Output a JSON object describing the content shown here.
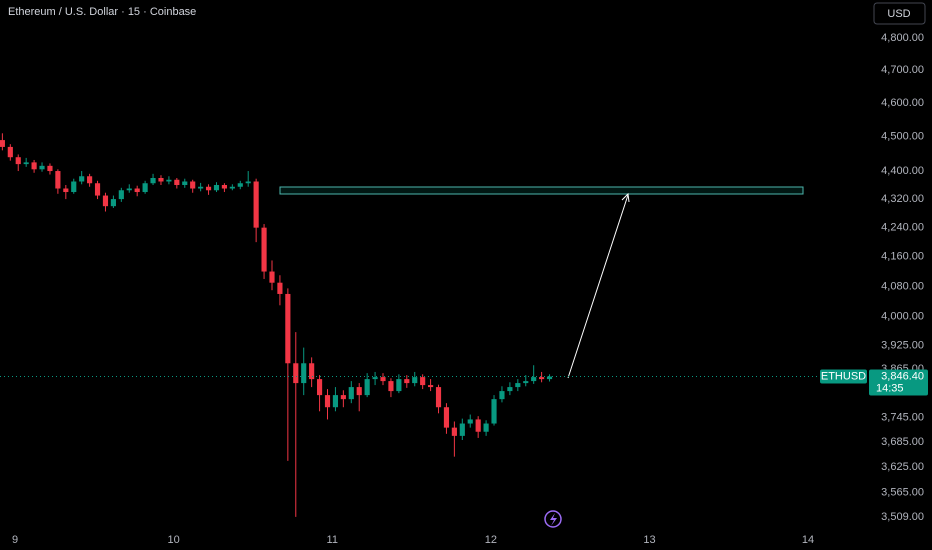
{
  "chart_data": {
    "type": "candlestick",
    "title": "Ethereum / U.S. Dollar · 15 · Coinbase",
    "currency": "USD",
    "symbol": "ETHUSD",
    "countdown": "14:35",
    "last_price": {
      "value": 3846.4,
      "label": "3,846.40"
    },
    "up_color": "#089981",
    "down_color": "#f23645",
    "log_scale": true,
    "grid": false,
    "xlim": [
      8.905,
      14.378
    ],
    "xticks": [
      9,
      10,
      11,
      12,
      13,
      14
    ],
    "ylim": [
      3479,
      4921
    ],
    "yticks": [
      {
        "value": 4800,
        "label": "4,800.00"
      },
      {
        "value": 4700,
        "label": "4,700.00"
      },
      {
        "value": 4600,
        "label": "4,600.00"
      },
      {
        "value": 4500,
        "label": "4,500.00"
      },
      {
        "value": 4400,
        "label": "4,400.00"
      },
      {
        "value": 4320,
        "label": "4,320.00"
      },
      {
        "value": 4240,
        "label": "4,240.00"
      },
      {
        "value": 4160,
        "label": "4,160.00"
      },
      {
        "value": 4080,
        "label": "4,080.00"
      },
      {
        "value": 4000,
        "label": "4,000.00"
      },
      {
        "value": 3925,
        "label": "3,925.00"
      },
      {
        "value": 3865,
        "label": "3,865.00"
      },
      {
        "value": 3745,
        "label": "3,745.00"
      },
      {
        "value": 3685,
        "label": "3,685.00"
      },
      {
        "value": 3625,
        "label": "3,625.00"
      },
      {
        "value": 3565,
        "label": "3,565.00"
      },
      {
        "value": 3509,
        "label": "3,509.00"
      }
    ],
    "x": [
      8.92,
      8.97,
      9.02,
      9.07,
      9.12,
      9.17,
      9.22,
      9.27,
      9.32,
      9.37,
      9.42,
      9.47,
      9.52,
      9.57,
      9.62,
      9.67,
      9.72,
      9.77,
      9.82,
      9.87,
      9.92,
      9.97,
      10.02,
      10.07,
      10.12,
      10.17,
      10.22,
      10.27,
      10.32,
      10.37,
      10.42,
      10.47,
      10.52,
      10.57,
      10.62,
      10.67,
      10.72,
      10.77,
      10.82,
      10.87,
      10.92,
      10.97,
      11.02,
      11.07,
      11.12,
      11.17,
      11.22,
      11.27,
      11.32,
      11.37,
      11.42,
      11.47,
      11.52,
      11.57,
      11.62,
      11.67,
      11.72,
      11.77,
      11.82,
      11.87,
      11.92,
      11.97,
      12.02,
      12.07,
      12.12,
      12.17,
      12.22,
      12.27,
      12.32,
      12.37
    ],
    "open": [
      4490,
      4470,
      4440,
      4420,
      4425,
      4405,
      4415,
      4400,
      4350,
      4340,
      4370,
      4385,
      4365,
      4330,
      4300,
      4320,
      4345,
      4350,
      4340,
      4365,
      4380,
      4370,
      4375,
      4360,
      4370,
      4350,
      4355,
      4345,
      4360,
      4350,
      4355,
      4365,
      4370,
      4240,
      4120,
      4090,
      4060,
      3880,
      3830,
      3880,
      3840,
      3800,
      3770,
      3800,
      3790,
      3820,
      3800,
      3840,
      3845,
      3835,
      3810,
      3840,
      3830,
      3845,
      3825,
      3820,
      3770,
      3720,
      3700,
      3730,
      3740,
      3710,
      3730,
      3790,
      3810,
      3820,
      3830,
      3835,
      3845,
      3840
    ],
    "high": [
      4510,
      4478,
      4448,
      4438,
      4432,
      4425,
      4422,
      4405,
      4360,
      4378,
      4400,
      4392,
      4372,
      4338,
      4330,
      4352,
      4362,
      4358,
      4372,
      4392,
      4388,
      4385,
      4380,
      4378,
      4375,
      4366,
      4362,
      4368,
      4365,
      4362,
      4372,
      4400,
      4378,
      4250,
      4150,
      4110,
      4075,
      3960,
      3920,
      3895,
      3850,
      3815,
      3820,
      3812,
      3835,
      3830,
      3855,
      3858,
      3855,
      3842,
      3852,
      3850,
      3858,
      3852,
      3840,
      3826,
      3780,
      3735,
      3742,
      3752,
      3748,
      3738,
      3800,
      3822,
      3832,
      3840,
      3850,
      3875,
      3858,
      3852
    ],
    "low": [
      4460,
      4430,
      4400,
      4412,
      4395,
      4398,
      4390,
      4335,
      4320,
      4335,
      4362,
      4355,
      4320,
      4285,
      4295,
      4312,
      4338,
      4328,
      4335,
      4360,
      4360,
      4362,
      4350,
      4352,
      4338,
      4342,
      4332,
      4340,
      4340,
      4345,
      4348,
      4355,
      4200,
      4100,
      4070,
      4030,
      3640,
      3509,
      3800,
      3820,
      3760,
      3740,
      3760,
      3770,
      3780,
      3760,
      3795,
      3825,
      3825,
      3795,
      3805,
      3818,
      3822,
      3815,
      3810,
      3755,
      3705,
      3650,
      3690,
      3720,
      3695,
      3700,
      3725,
      3782,
      3800,
      3810,
      3822,
      3828,
      3832,
      3834
    ],
    "close": [
      4470,
      4440,
      4420,
      4425,
      4405,
      4415,
      4400,
      4350,
      4340,
      4370,
      4385,
      4365,
      4330,
      4300,
      4320,
      4345,
      4350,
      4340,
      4365,
      4380,
      4370,
      4375,
      4360,
      4370,
      4350,
      4355,
      4345,
      4360,
      4350,
      4355,
      4365,
      4370,
      4240,
      4120,
      4090,
      4060,
      3880,
      3830,
      3880,
      3840,
      3800,
      3770,
      3800,
      3790,
      3820,
      3800,
      3840,
      3845,
      3835,
      3810,
      3840,
      3830,
      3845,
      3825,
      3820,
      3770,
      3720,
      3700,
      3730,
      3740,
      3710,
      3730,
      3790,
      3810,
      3820,
      3830,
      3835,
      3845,
      3840,
      3846.4
    ]
  }
}
